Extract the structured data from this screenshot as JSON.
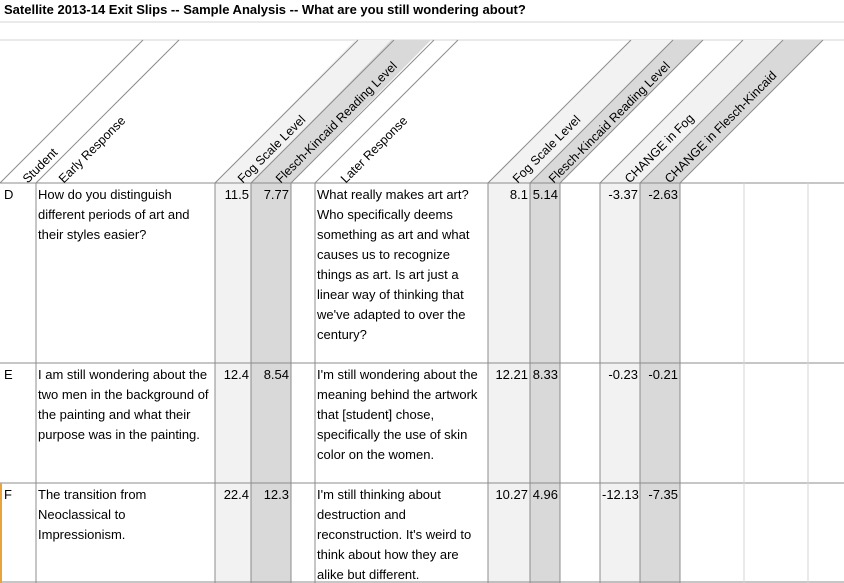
{
  "sheet": {
    "title": "Satellite 2013-14 Exit Slips -- Sample Analysis -- What are you still wondering about?",
    "headers": {
      "student": "Student",
      "early": "Early Response",
      "fog1": "Fog Scale Level",
      "fk1": "Flesch-Kincaid Reading Level",
      "later": "Later Response",
      "fog2": "Fog Scale Level",
      "fk2": "Flesch-Kincaid Reading Level",
      "chfog": "CHANGE in Fog",
      "chfk": "CHANGE in Flesch-Kincaid"
    },
    "rows": [
      {
        "student": "D",
        "early": "How do you distinguish different periods of art and their styles easier?",
        "fog1": "11.5",
        "fk1": "7.77",
        "later": "What really makes art art? Who specifically deems something as art and what causes us to recognize things as art. Is art just a linear way of thinking that we've adapted to over the century?",
        "fog2": "8.1",
        "fk2": "5.14",
        "chfog": "-3.37",
        "chfk": "-2.63"
      },
      {
        "student": "E",
        "early": "I am still wondering about the two men in the background of the painting and what their purpose was in the painting.",
        "fog1": "12.4",
        "fk1": "8.54",
        "later": "I'm still wondering about the meaning behind the artwork that [student] chose, specifically the use of skin color on the women.",
        "fog2": "12.21",
        "fk2": "8.33",
        "chfog": "-0.23",
        "chfk": "-0.21"
      },
      {
        "student": "F",
        "early": "The transition from Neoclassical to Impressionism.",
        "fog1": "22.4",
        "fk1": "12.3",
        "later": "I'm still thinking about destruction and reconstruction. It's weird to think about how they are alike but different.",
        "fog2": "10.27",
        "fk2": "4.96",
        "chfog": "-12.13",
        "chfk": "-7.35"
      }
    ]
  }
}
